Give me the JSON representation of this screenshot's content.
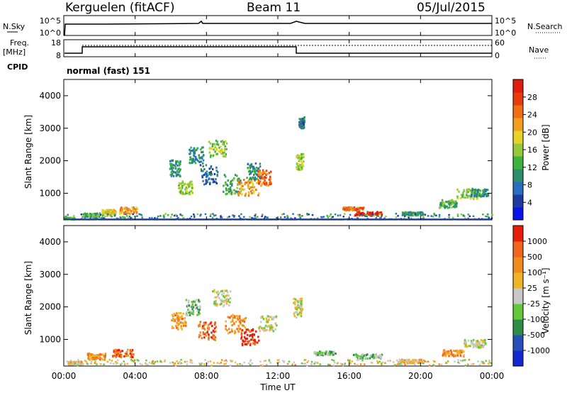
{
  "header": {
    "station": "Kerguelen (fitACF)",
    "beam": "Beam 11",
    "date": "05/Jul/2015"
  },
  "panels": {
    "nsky": {
      "label": "N.Sky",
      "right_label": "N.Search",
      "ticks": [
        "10^5",
        "10^0"
      ],
      "right_ticks": [
        "10^5",
        "10^0"
      ]
    },
    "freq": {
      "label_line1": "Freq.",
      "label_line2": "[MHz]",
      "right_label": "Nave",
      "ticks": [
        "18",
        "8"
      ],
      "right_ticks": [
        "60",
        "0"
      ]
    },
    "cpid": {
      "label": "CPID",
      "text": "normal (fast) 151"
    }
  },
  "chart_data": [
    {
      "type": "heatmap",
      "name": "Power",
      "ylabel": "Slant Range [km]",
      "ylim": [
        180,
        4500
      ],
      "yticks": [
        "4000",
        "3000",
        "2000",
        "1000"
      ],
      "colorbar": {
        "label": "Power [dB]",
        "ticks": [
          "28",
          "24",
          "20",
          "16",
          "12",
          "8",
          "4"
        ],
        "colors": [
          "#0a14e6",
          "#1e3ca0",
          "#286ebe",
          "#2e8c6e",
          "#3cb43c",
          "#96c83c",
          "#e6d228",
          "#f0a01e",
          "#f06e14",
          "#e63c0a",
          "#dc1e0a"
        ]
      },
      "blobs": [
        {
          "t": 0.25,
          "r": 250,
          "w": 0.35,
          "h": 30,
          "c": 4
        },
        {
          "t": 2.5,
          "r": 450,
          "w": 0.4,
          "h": 70,
          "c": 6
        },
        {
          "t": 3.6,
          "r": 500,
          "w": 0.5,
          "h": 100,
          "c": 7
        },
        {
          "t": 1.5,
          "r": 350,
          "w": 0.5,
          "h": 60,
          "c": 4
        },
        {
          "t": 6.2,
          "r": 1800,
          "w": 0.3,
          "h": 250,
          "c": 3
        },
        {
          "t": 6.8,
          "r": 1200,
          "w": 0.4,
          "h": 200,
          "c": 5
        },
        {
          "t": 7.4,
          "r": 2200,
          "w": 0.4,
          "h": 250,
          "c": 3
        },
        {
          "t": 8.1,
          "r": 1600,
          "w": 0.5,
          "h": 300,
          "c": 2
        },
        {
          "t": 8.6,
          "r": 2400,
          "w": 0.5,
          "h": 250,
          "c": 5
        },
        {
          "t": 9.4,
          "r": 1300,
          "w": 0.5,
          "h": 300,
          "c": 4
        },
        {
          "t": 10.3,
          "r": 1200,
          "w": 0.6,
          "h": 250,
          "c": 7
        },
        {
          "t": 10.6,
          "r": 1700,
          "w": 0.4,
          "h": 250,
          "c": 3
        },
        {
          "t": 11.2,
          "r": 1500,
          "w": 0.4,
          "h": 250,
          "c": 8
        },
        {
          "t": 13.2,
          "r": 2000,
          "w": 0.2,
          "h": 250,
          "c": 5
        },
        {
          "t": 13.3,
          "r": 3200,
          "w": 0.15,
          "h": 180,
          "c": 2
        },
        {
          "t": 16.2,
          "r": 550,
          "w": 0.6,
          "h": 50,
          "c": 8
        },
        {
          "t": 17.0,
          "r": 400,
          "w": 0.8,
          "h": 60,
          "c": 10
        },
        {
          "t": 19.5,
          "r": 400,
          "w": 0.6,
          "h": 50,
          "c": 3
        },
        {
          "t": 21.5,
          "r": 700,
          "w": 0.5,
          "h": 120,
          "c": 4
        },
        {
          "t": 22.6,
          "r": 1000,
          "w": 0.6,
          "h": 150,
          "c": 5
        },
        {
          "t": 23.3,
          "r": 1050,
          "w": 0.5,
          "h": 120,
          "c": 3
        }
      ]
    },
    {
      "type": "heatmap",
      "name": "Velocity",
      "ylabel": "Slant Range [km]",
      "ylim": [
        180,
        4500
      ],
      "xlabel": "Time UT",
      "xticks": [
        "00:00",
        "04:00",
        "08:00",
        "12:00",
        "16:00",
        "20:00",
        "00:00"
      ],
      "yticks": [
        "4000",
        "3000",
        "2000",
        "1000"
      ],
      "colorbar": {
        "label": "Velocity [m s⁻¹]",
        "ticks": [
          "1000",
          "500",
          "100",
          "25",
          "-25",
          "-100",
          "-500",
          "-1000"
        ],
        "colors": [
          "#1428d2",
          "#2850b4",
          "#2e8c46",
          "#64c83c",
          "#c8c8c8",
          "#f0b428",
          "#f08c1e",
          "#f0641e",
          "#e61e0a"
        ]
      },
      "blobs": [
        {
          "t": 1.8,
          "r": 500,
          "w": 0.5,
          "h": 100,
          "c": 6
        },
        {
          "t": 3.3,
          "r": 600,
          "w": 0.6,
          "h": 120,
          "c": 7
        },
        {
          "t": 0.6,
          "r": 300,
          "w": 0.4,
          "h": 50,
          "c": 5
        },
        {
          "t": 6.4,
          "r": 1600,
          "w": 0.4,
          "h": 280,
          "c": 6
        },
        {
          "t": 7.2,
          "r": 2000,
          "w": 0.4,
          "h": 250,
          "c": 3
        },
        {
          "t": 8.0,
          "r": 1300,
          "w": 0.5,
          "h": 300,
          "c": 7
        },
        {
          "t": 8.8,
          "r": 2300,
          "w": 0.5,
          "h": 250,
          "c": 4
        },
        {
          "t": 9.6,
          "r": 1500,
          "w": 0.6,
          "h": 300,
          "c": 6
        },
        {
          "t": 10.4,
          "r": 1100,
          "w": 0.5,
          "h": 250,
          "c": 8
        },
        {
          "t": 11.4,
          "r": 1500,
          "w": 0.5,
          "h": 250,
          "c": 4
        },
        {
          "t": 13.1,
          "r": 2000,
          "w": 0.25,
          "h": 300,
          "c": 4
        },
        {
          "t": 14.6,
          "r": 600,
          "w": 0.6,
          "h": 60,
          "c": 3
        },
        {
          "t": 17.0,
          "r": 500,
          "w": 0.8,
          "h": 70,
          "c": 3
        },
        {
          "t": 19.4,
          "r": 350,
          "w": 0.7,
          "h": 60,
          "c": 5
        },
        {
          "t": 21.8,
          "r": 600,
          "w": 0.6,
          "h": 100,
          "c": 6
        },
        {
          "t": 23.0,
          "r": 900,
          "w": 0.6,
          "h": 120,
          "c": 4
        }
      ]
    }
  ]
}
